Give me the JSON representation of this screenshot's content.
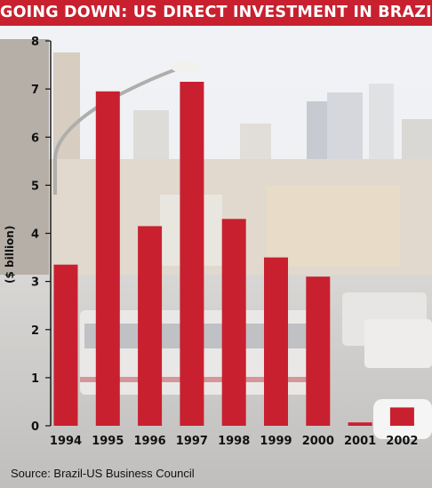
{
  "chart_data": {
    "type": "bar",
    "title": "GOING DOWN: US DIRECT INVESTMENT IN BRAZIL",
    "ylabel": "($ billion)",
    "xlabel": "",
    "categories": [
      "1994",
      "1995",
      "1996",
      "1997",
      "1998",
      "1999",
      "2000",
      "2001",
      "2002"
    ],
    "values": [
      3.35,
      6.95,
      4.15,
      7.15,
      4.3,
      3.5,
      3.1,
      0.07,
      0.38
    ],
    "ylim": [
      0,
      8
    ],
    "yticks": [
      0,
      1,
      2,
      3,
      4,
      5,
      6,
      7,
      8
    ],
    "grid": false,
    "source": "Source: Brazil-US Business Council",
    "colors": {
      "bar": "#c8202f",
      "title_background": "#c8202f",
      "title_text": "#ffffff",
      "text": "#111111"
    }
  }
}
